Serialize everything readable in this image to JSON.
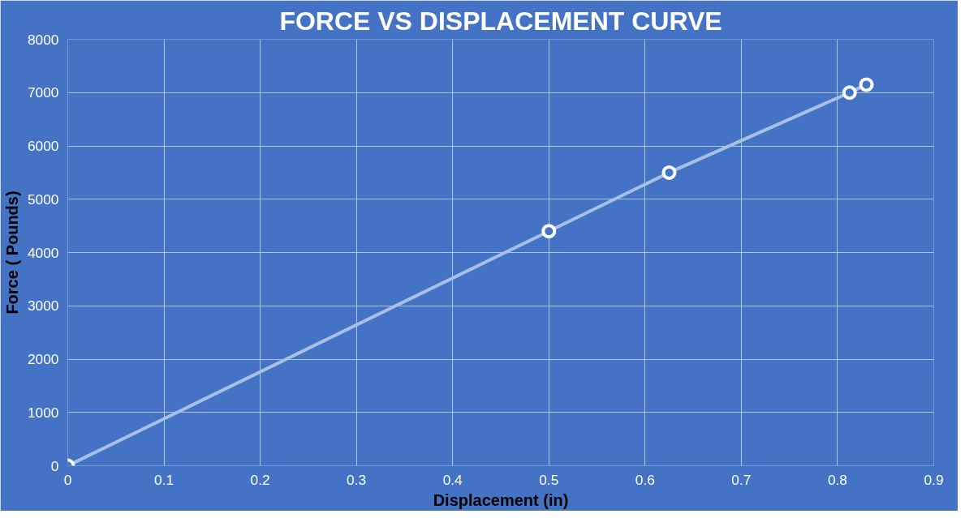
{
  "chart_data": {
    "type": "line",
    "title": "FORCE VS DISPLACEMENT CURVE",
    "xlabel": "Displacement (in)",
    "ylabel": "Force ( Pounds)",
    "x": [
      0,
      0.5,
      0.625,
      0.8125,
      0.83
    ],
    "series": [
      {
        "color": "#a9c0e6",
        "values": [
          0,
          4400,
          5500,
          7000,
          7150
        ]
      }
    ],
    "xlim": [
      0,
      0.9
    ],
    "xticks": [
      0,
      0.1,
      0.2,
      0.3,
      0.4,
      0.5,
      0.6,
      0.7,
      0.8,
      0.9
    ],
    "ylim": [
      0,
      8000
    ],
    "yticks": [
      0,
      1000,
      2000,
      3000,
      4000,
      5000,
      6000,
      7000,
      8000
    ],
    "grid": true,
    "marker": "circle"
  }
}
